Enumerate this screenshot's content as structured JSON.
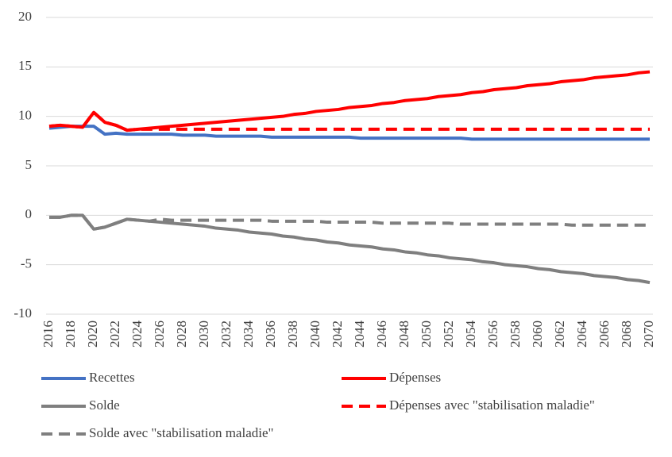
{
  "chart_data": {
    "type": "line",
    "x": [
      2016,
      2017,
      2018,
      2019,
      2020,
      2021,
      2022,
      2023,
      2024,
      2025,
      2026,
      2027,
      2028,
      2029,
      2030,
      2031,
      2032,
      2033,
      2034,
      2035,
      2036,
      2037,
      2038,
      2039,
      2040,
      2041,
      2042,
      2043,
      2044,
      2045,
      2046,
      2047,
      2048,
      2049,
      2050,
      2051,
      2052,
      2053,
      2054,
      2055,
      2056,
      2057,
      2058,
      2059,
      2060,
      2061,
      2062,
      2063,
      2064,
      2065,
      2066,
      2067,
      2068,
      2069,
      2070
    ],
    "xlim": [
      2016,
      2070
    ],
    "xticks": [
      2016,
      2018,
      2020,
      2022,
      2024,
      2026,
      2028,
      2030,
      2032,
      2034,
      2036,
      2038,
      2040,
      2042,
      2044,
      2046,
      2048,
      2050,
      2052,
      2054,
      2056,
      2058,
      2060,
      2062,
      2064,
      2066,
      2068,
      2070
    ],
    "ylim": [
      -10,
      20
    ],
    "yticks": [
      -10,
      -5,
      0,
      5,
      10,
      15,
      20
    ],
    "grid": true,
    "legend": "bottom",
    "series": [
      {
        "name": "Recettes",
        "color": "#4472c4",
        "dash": false,
        "values": [
          8.8,
          8.9,
          9.0,
          9.0,
          9.0,
          8.2,
          8.3,
          8.2,
          8.2,
          8.2,
          8.2,
          8.2,
          8.1,
          8.1,
          8.1,
          8.0,
          8.0,
          8.0,
          8.0,
          8.0,
          7.9,
          7.9,
          7.9,
          7.9,
          7.9,
          7.9,
          7.9,
          7.9,
          7.8,
          7.8,
          7.8,
          7.8,
          7.8,
          7.8,
          7.8,
          7.8,
          7.8,
          7.8,
          7.7,
          7.7,
          7.7,
          7.7,
          7.7,
          7.7,
          7.7,
          7.7,
          7.7,
          7.7,
          7.7,
          7.7,
          7.7,
          7.7,
          7.7,
          7.7,
          7.7
        ]
      },
      {
        "name": "Dépenses",
        "color": "#ff0000",
        "dash": false,
        "values": [
          9.0,
          9.1,
          9.0,
          8.9,
          10.4,
          9.4,
          9.1,
          8.6,
          8.7,
          8.8,
          8.9,
          9.0,
          9.1,
          9.2,
          9.3,
          9.4,
          9.5,
          9.6,
          9.7,
          9.8,
          9.9,
          10.0,
          10.2,
          10.3,
          10.5,
          10.6,
          10.7,
          10.9,
          11.0,
          11.1,
          11.3,
          11.4,
          11.6,
          11.7,
          11.8,
          12.0,
          12.1,
          12.2,
          12.4,
          12.5,
          12.7,
          12.8,
          12.9,
          13.1,
          13.2,
          13.3,
          13.5,
          13.6,
          13.7,
          13.9,
          14.0,
          14.1,
          14.2,
          14.4,
          14.5
        ]
      },
      {
        "name": "Solde",
        "color": "#7f7f7f",
        "dash": false,
        "values": [
          -0.2,
          -0.2,
          0.0,
          0.0,
          -1.4,
          -1.2,
          -0.8,
          -0.4,
          -0.5,
          -0.6,
          -0.7,
          -0.8,
          -0.9,
          -1.0,
          -1.1,
          -1.3,
          -1.4,
          -1.5,
          -1.7,
          -1.8,
          -1.9,
          -2.1,
          -2.2,
          -2.4,
          -2.5,
          -2.7,
          -2.8,
          -3.0,
          -3.1,
          -3.2,
          -3.4,
          -3.5,
          -3.7,
          -3.8,
          -4.0,
          -4.1,
          -4.3,
          -4.4,
          -4.5,
          -4.7,
          -4.8,
          -5.0,
          -5.1,
          -5.2,
          -5.4,
          -5.5,
          -5.7,
          -5.8,
          -5.9,
          -6.1,
          -6.2,
          -6.3,
          -6.5,
          -6.6,
          -6.8
        ]
      },
      {
        "name": "Dépenses avec \"stabilisation maladie\"",
        "color": "#ff0000",
        "dash": true,
        "values": [
          9.0,
          9.1,
          9.0,
          8.9,
          10.4,
          9.4,
          9.1,
          8.6,
          8.7,
          8.7,
          8.7,
          8.7,
          8.7,
          8.7,
          8.7,
          8.7,
          8.7,
          8.7,
          8.7,
          8.7,
          8.7,
          8.7,
          8.7,
          8.7,
          8.7,
          8.7,
          8.7,
          8.7,
          8.7,
          8.7,
          8.7,
          8.7,
          8.7,
          8.7,
          8.7,
          8.7,
          8.7,
          8.7,
          8.7,
          8.7,
          8.7,
          8.7,
          8.7,
          8.7,
          8.7,
          8.7,
          8.7,
          8.7,
          8.7,
          8.7,
          8.7,
          8.7,
          8.7,
          8.7,
          8.7
        ]
      },
      {
        "name": "Solde avec \"stabilisation maladie\"",
        "color": "#7f7f7f",
        "dash": true,
        "values": [
          -0.2,
          -0.2,
          0.0,
          0.0,
          -1.4,
          -1.2,
          -0.8,
          -0.4,
          -0.5,
          -0.6,
          -0.4,
          -0.5,
          -0.5,
          -0.5,
          -0.5,
          -0.5,
          -0.5,
          -0.5,
          -0.5,
          -0.5,
          -0.6,
          -0.6,
          -0.6,
          -0.6,
          -0.6,
          -0.7,
          -0.7,
          -0.7,
          -0.7,
          -0.7,
          -0.8,
          -0.8,
          -0.8,
          -0.8,
          -0.8,
          -0.8,
          -0.8,
          -0.9,
          -0.9,
          -0.9,
          -0.9,
          -0.9,
          -0.9,
          -0.9,
          -0.9,
          -0.9,
          -0.9,
          -1.0,
          -1.0,
          -1.0,
          -1.0,
          -1.0,
          -1.0,
          -1.0,
          -1.0
        ]
      }
    ]
  }
}
